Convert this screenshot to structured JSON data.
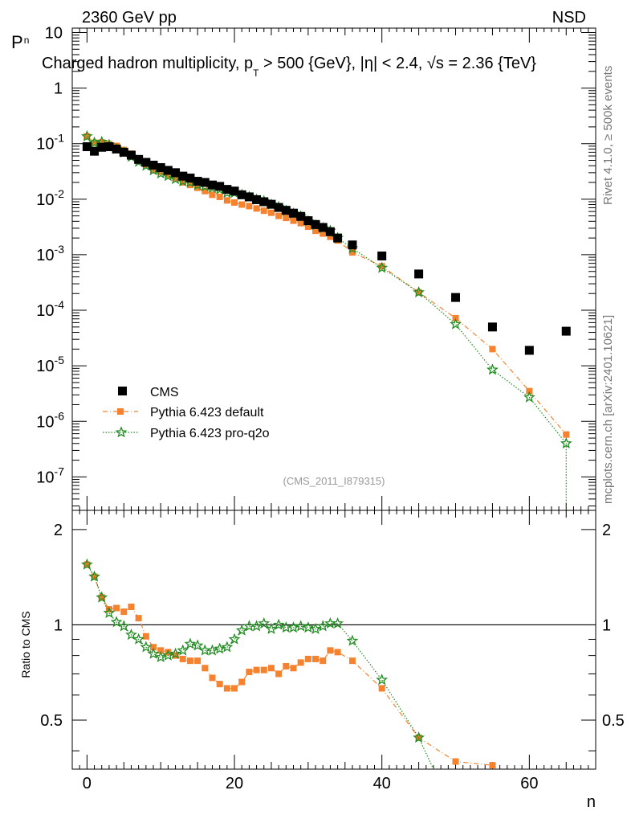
{
  "header": {
    "energy_label": "2360 GeV pp",
    "process_label": "NSD",
    "title": "Charged hadron multiplicity, p_T > 500 {GeV}, |η| < 2.4, √s = 2.36 {TeV}",
    "title_parts": {
      "pre": "Charged hadron multiplicity, p",
      "sub": "T",
      "post": " > 500 {GeV}, |η| < 2.4, √s = 2.36 {TeV}"
    },
    "side_label_top": "Rivet 4.1.0, ≥ 500k events",
    "side_label_bottom": "mcplots.cern.ch [arXiv:2401.10621]",
    "analysis_id": "(CMS_2011_I879315)"
  },
  "colors": {
    "cms": "#000000",
    "pythia_default": "#f5822f",
    "pythia_proq2o": "#228b22",
    "ref_line": "#000000"
  },
  "chart_data": [
    {
      "type": "scatter",
      "name": "main",
      "ylabel": "P_n",
      "ylabel_parts": {
        "main": "P",
        "sub": "n"
      },
      "xlabel": "n",
      "xlim": [
        -2,
        69
      ],
      "ylim": [
        2.5e-08,
        12
      ],
      "yscale": "log",
      "yticks": [
        {
          "value": 10,
          "label": "10",
          "exp": ""
        },
        {
          "value": 1,
          "label": "1",
          "exp": ""
        },
        {
          "value": 0.1,
          "label": "10",
          "exp": "-1"
        },
        {
          "value": 0.01,
          "label": "10",
          "exp": "-2"
        },
        {
          "value": 0.001,
          "label": "10",
          "exp": "-3"
        },
        {
          "value": 0.0001,
          "label": "10",
          "exp": "-4"
        },
        {
          "value": 1e-05,
          "label": "10",
          "exp": "-5"
        },
        {
          "value": 1e-06,
          "label": "10",
          "exp": "-6"
        },
        {
          "value": 1e-07,
          "label": "10",
          "exp": "-7"
        }
      ],
      "legend": [
        {
          "key": "cms",
          "label": "CMS"
        },
        {
          "key": "pythia_default",
          "label": "Pythia 6.423 default"
        },
        {
          "key": "pythia_proq2o",
          "label": "Pythia 6.423 pro-q2o"
        }
      ],
      "series": {
        "cms": {
          "label": "CMS",
          "x": [
            0,
            1,
            2,
            3,
            4,
            5,
            6,
            7,
            8,
            9,
            10,
            11,
            12,
            13,
            14,
            15,
            16,
            17,
            18,
            19,
            20,
            21,
            22,
            23,
            24,
            25,
            26,
            27,
            28,
            29,
            30,
            31,
            32,
            33,
            34,
            36,
            40,
            45,
            50,
            55,
            60,
            65
          ],
          "y": [
            0.088,
            0.073,
            0.086,
            0.088,
            0.08,
            0.07,
            0.062,
            0.052,
            0.046,
            0.041,
            0.037,
            0.033,
            0.03,
            0.026,
            0.024,
            0.021,
            0.02,
            0.018,
            0.017,
            0.015,
            0.014,
            0.012,
            0.011,
            0.0098,
            0.009,
            0.0081,
            0.0071,
            0.0063,
            0.0056,
            0.0049,
            0.0041,
            0.0035,
            0.0031,
            0.0026,
            0.002,
            0.0015,
            0.00095,
            0.00045,
            0.00017,
            5e-05,
            1.9e-05,
            4.2e-05
          ]
        },
        "pythia_default": {
          "label": "Pythia 6.423 default",
          "x": [
            0,
            1,
            2,
            3,
            4,
            5,
            6,
            7,
            8,
            9,
            10,
            11,
            12,
            13,
            14,
            15,
            16,
            17,
            18,
            19,
            20,
            21,
            22,
            23,
            24,
            25,
            26,
            27,
            28,
            29,
            30,
            31,
            32,
            33,
            34,
            36,
            40,
            45,
            50,
            55,
            60,
            65
          ],
          "y": [
            0.135,
            0.104,
            0.105,
            0.098,
            0.091,
            0.077,
            0.066,
            0.054,
            0.042,
            0.034,
            0.031,
            0.027,
            0.024,
            0.02,
            0.018,
            0.016,
            0.014,
            0.012,
            0.011,
            0.0095,
            0.0087,
            0.008,
            0.0075,
            0.0068,
            0.0062,
            0.0057,
            0.005,
            0.0046,
            0.0041,
            0.0037,
            0.0032,
            0.0027,
            0.0024,
            0.0021,
            0.0018,
            0.0011,
            0.00062,
            0.00021,
            7.2e-05,
            2e-05,
            3.5e-06,
            5.8e-07
          ]
        },
        "pythia_proq2o": {
          "label": "Pythia 6.423 pro-q2o",
          "x": [
            0,
            1,
            2,
            3,
            4,
            5,
            6,
            7,
            8,
            9,
            10,
            11,
            12,
            13,
            14,
            15,
            16,
            17,
            18,
            19,
            20,
            21,
            22,
            23,
            24,
            25,
            26,
            27,
            28,
            29,
            30,
            31,
            32,
            33,
            34,
            36,
            40,
            45,
            50,
            55,
            60,
            65
          ],
          "y": [
            0.135,
            0.104,
            0.107,
            0.095,
            0.08,
            0.069,
            0.058,
            0.047,
            0.04,
            0.033,
            0.029,
            0.026,
            0.023,
            0.021,
            0.02,
            0.018,
            0.017,
            0.016,
            0.015,
            0.013,
            0.013,
            0.012,
            0.011,
            0.0098,
            0.0092,
            0.008,
            0.0072,
            0.0062,
            0.0055,
            0.0049,
            0.004,
            0.0034,
            0.003,
            0.0027,
            0.002,
            0.0013,
            0.00058,
            0.00021,
            5.6e-05,
            8.5e-06,
            2.7e-06,
            4e-07
          ]
        }
      }
    },
    {
      "type": "scatter",
      "name": "ratio",
      "ylabel": "Ratio to CMS",
      "xlabel": "n",
      "xlim": [
        -2,
        69
      ],
      "ylim": [
        0.35,
        2.3
      ],
      "yscale": "log",
      "yticks": [
        {
          "value": 2,
          "label": "2"
        },
        {
          "value": 1,
          "label": "1"
        },
        {
          "value": 0.5,
          "label": "0.5"
        }
      ],
      "xticks": [
        0,
        20,
        40,
        60
      ],
      "reference": 1,
      "series": {
        "pythia_default": {
          "label": "Pythia 6.423 default",
          "x": [
            0,
            1,
            2,
            3,
            4,
            5,
            6,
            7,
            8,
            9,
            10,
            11,
            12,
            13,
            14,
            15,
            16,
            17,
            18,
            19,
            20,
            21,
            22,
            23,
            24,
            25,
            26,
            27,
            28,
            29,
            30,
            31,
            32,
            33,
            34,
            36,
            40,
            45,
            50,
            55
          ],
          "y": [
            1.55,
            1.42,
            1.22,
            1.12,
            1.13,
            1.1,
            1.14,
            1.05,
            0.92,
            0.85,
            0.83,
            0.82,
            0.8,
            0.78,
            0.77,
            0.77,
            0.73,
            0.68,
            0.65,
            0.63,
            0.63,
            0.66,
            0.71,
            0.72,
            0.72,
            0.73,
            0.7,
            0.74,
            0.73,
            0.76,
            0.78,
            0.78,
            0.77,
            0.83,
            0.82,
            0.77,
            0.63,
            0.44,
            0.37,
            0.36
          ]
        },
        "pythia_proq2o": {
          "label": "Pythia 6.423 pro-q2o",
          "x": [
            0,
            1,
            2,
            3,
            4,
            5,
            6,
            7,
            8,
            9,
            10,
            11,
            12,
            13,
            14,
            15,
            16,
            17,
            18,
            19,
            20,
            21,
            22,
            23,
            24,
            25,
            26,
            27,
            28,
            29,
            30,
            31,
            32,
            33,
            34,
            36,
            40,
            45
          ],
          "y": [
            1.55,
            1.42,
            1.22,
            1.09,
            1.02,
            0.99,
            0.93,
            0.9,
            0.85,
            0.81,
            0.79,
            0.8,
            0.81,
            0.83,
            0.87,
            0.86,
            0.83,
            0.83,
            0.84,
            0.85,
            0.9,
            0.96,
            0.99,
            0.99,
            1.01,
            0.97,
            1.0,
            0.98,
            0.98,
            0.99,
            0.98,
            0.97,
            0.99,
            1.01,
            1.01,
            0.89,
            0.67,
            0.44
          ]
        }
      }
    }
  ]
}
